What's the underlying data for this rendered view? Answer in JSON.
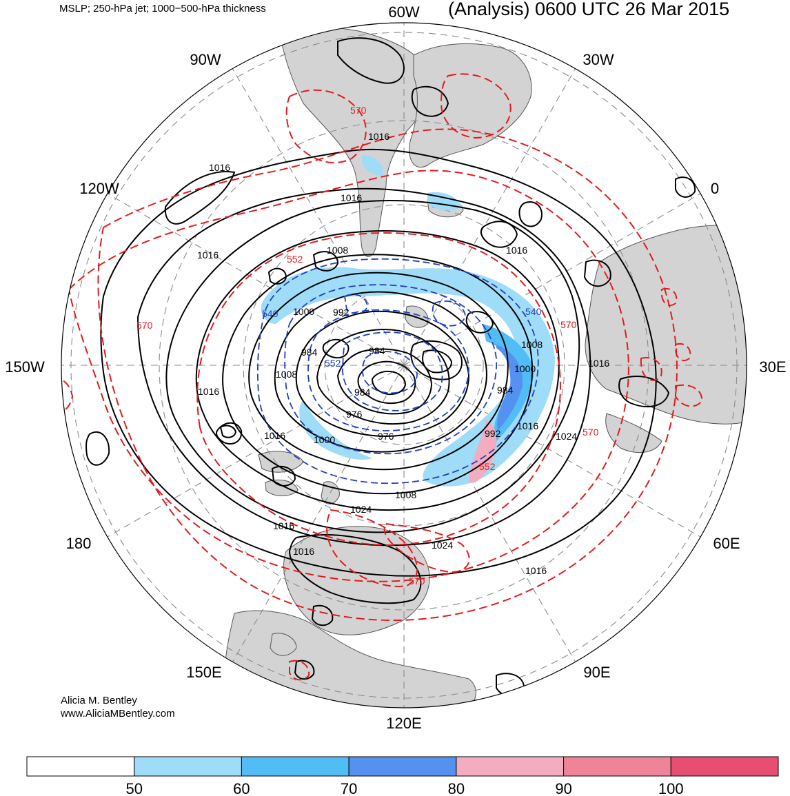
{
  "header": {
    "fields": "MSLP; 250-hPa jet; 1000−500-hPa thickness",
    "title": "(Analysis) 0600 UTC 26 Mar 2015"
  },
  "map": {
    "projection": "polar-stereographic-north",
    "longitude_labels": [
      "60W",
      "30W",
      "0",
      "30E",
      "60E",
      "90E",
      "120E",
      "150E",
      "180",
      "150W",
      "120W",
      "90W"
    ],
    "mslp_contour_labels": [
      "1016",
      "1016",
      "1016",
      "1016",
      "1008",
      "1016",
      "992",
      "1000",
      "984",
      "1008",
      "984",
      "984",
      "976",
      "976",
      "1016",
      "1000",
      "1016",
      "1008",
      "1000",
      "984",
      "992",
      "1016",
      "1024",
      "1008",
      "1024",
      "1016",
      "1024",
      "1016",
      "1016",
      "1016"
    ],
    "thickness_contour_labels": [
      "570",
      "552",
      "570",
      "540",
      "552",
      "540",
      "570",
      "570",
      "570",
      "552"
    ],
    "colors": {
      "land": "#d3d3d3",
      "mslp": "#000000",
      "thickness_warm": "#e41a1c",
      "thickness_cold": "#1f3fbf",
      "grid": "#8a8a8a"
    }
  },
  "jet_colorbar": {
    "ticks": [
      "50",
      "60",
      "70",
      "80",
      "90",
      "100"
    ],
    "colors": [
      "#ffffff",
      "#9edcf8",
      "#52bdf5",
      "#5591f0",
      "#f2aec0",
      "#ef8398",
      "#e84e72"
    ]
  },
  "credit": {
    "name": "Alicia M. Bentley",
    "url": "www.AliciaMBentley.com"
  }
}
